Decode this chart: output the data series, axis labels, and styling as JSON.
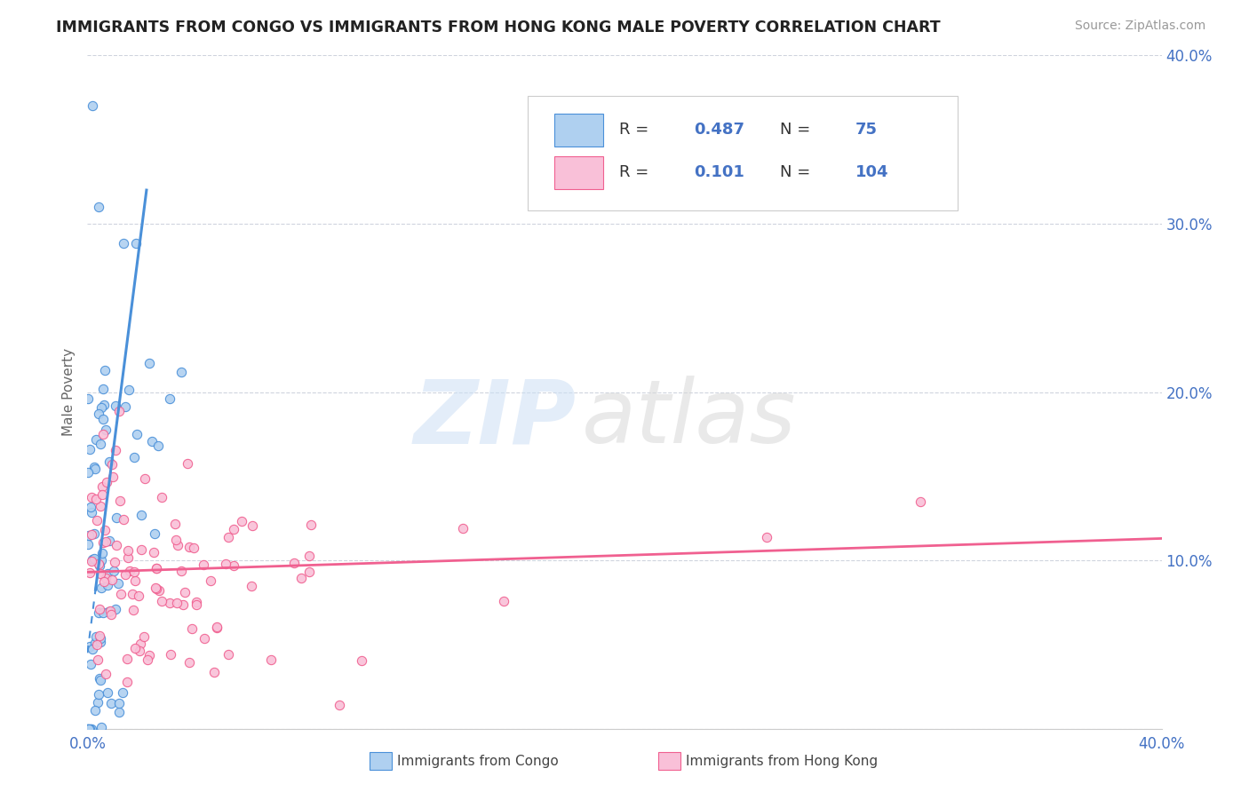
{
  "title": "IMMIGRANTS FROM CONGO VS IMMIGRANTS FROM HONG KONG MALE POVERTY CORRELATION CHART",
  "source": "Source: ZipAtlas.com",
  "ylabel": "Male Poverty",
  "xmin": 0.0,
  "xmax": 0.4,
  "ymin": 0.0,
  "ymax": 0.4,
  "congo_color": "#4a90d9",
  "congo_color_scatter": "#afd0f0",
  "hk_color": "#f06090",
  "hk_color_scatter": "#f9c0d8",
  "legend_congo_R": "0.487",
  "legend_congo_N": "75",
  "legend_hk_R": "0.101",
  "legend_hk_N": "104",
  "grid_color": "#b0b8c8",
  "background_color": "#ffffff",
  "axis_label_color": "#4472c4",
  "legend_R_color": "#4472c4",
  "title_color": "#222222"
}
